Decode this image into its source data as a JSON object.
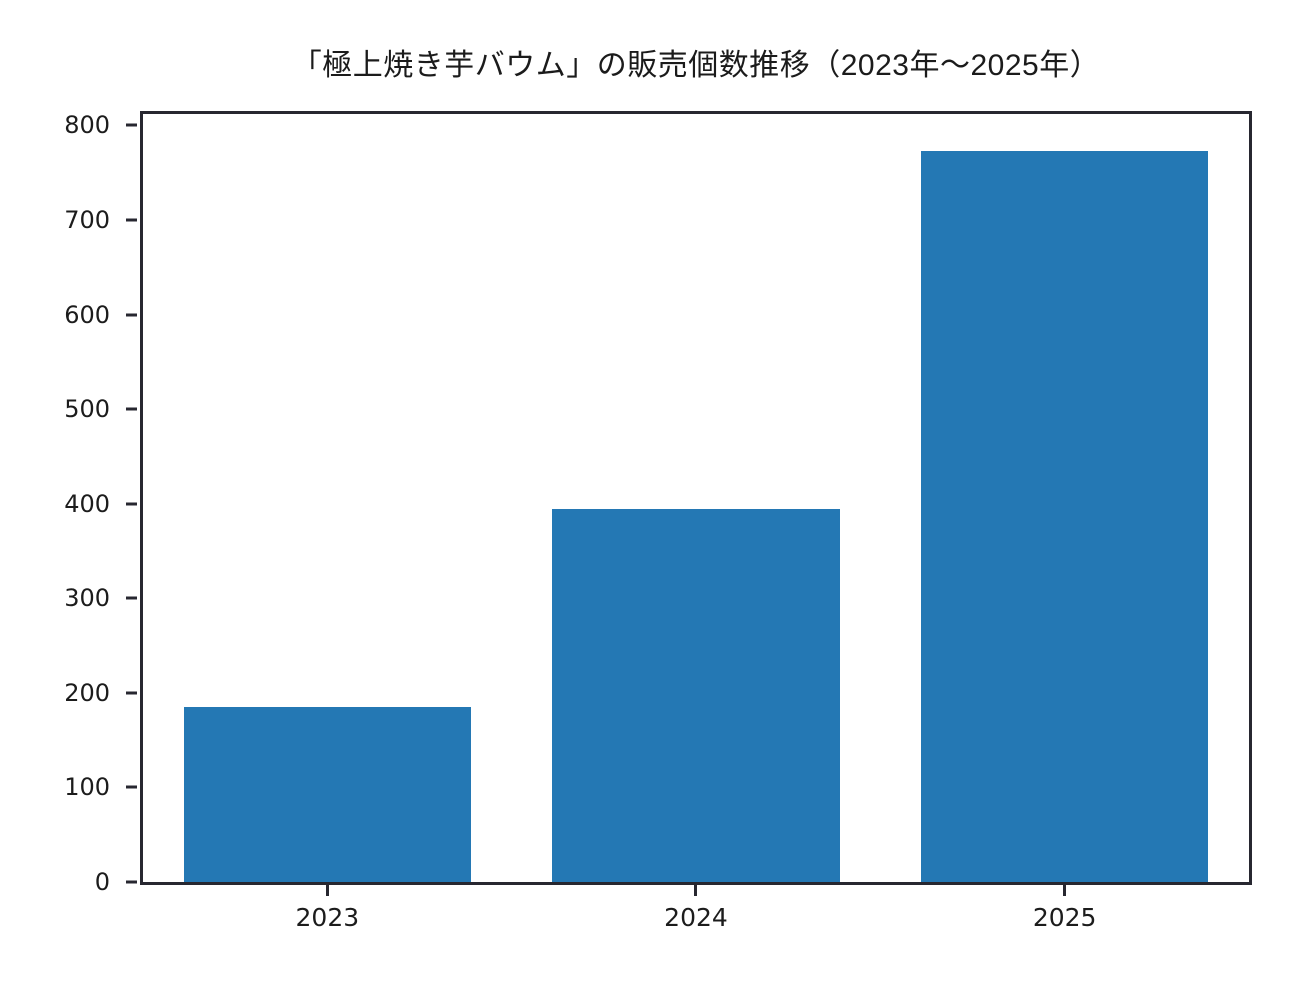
{
  "chart_data": {
    "type": "bar",
    "title": "「極上焼き芋バウム」の販売個数推移（2023年～2025年）",
    "categories": [
      "2023",
      "2024",
      "2025"
    ],
    "values": [
      185,
      394,
      773
    ],
    "xlabel": "",
    "ylabel": "",
    "ylim": [
      0,
      812
    ],
    "yticks": [
      0,
      100,
      200,
      300,
      400,
      500,
      600,
      700,
      800
    ],
    "grid": false,
    "legend": null,
    "bar_color": "#2478b4",
    "frame_color": "#272730",
    "text_color": "#1c1c1c",
    "background_color": "#ffffff"
  }
}
